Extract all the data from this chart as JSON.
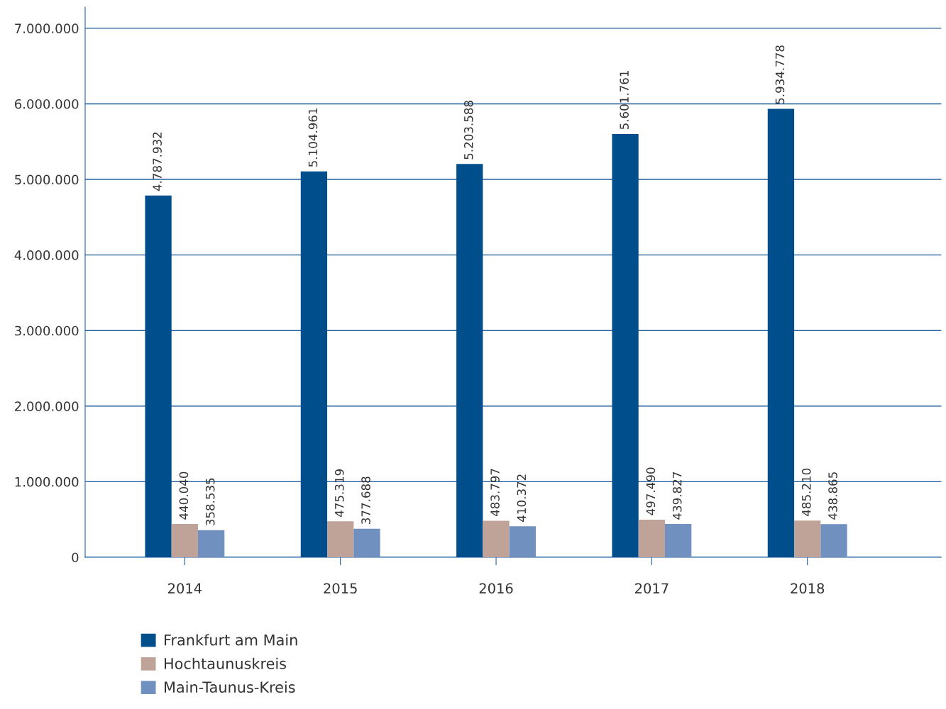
{
  "chart_data": {
    "type": "bar",
    "categories": [
      "2014",
      "2015",
      "2016",
      "2017",
      "2018"
    ],
    "series": [
      {
        "name": "Frankfurt am Main",
        "color": "#004f8c",
        "values": [
          4787932,
          5104961,
          5203588,
          5601761,
          5934778
        ],
        "value_labels": [
          "4.787.932",
          "5.104.961",
          "5.203.588",
          "5.601.761",
          "5.934.778"
        ]
      },
      {
        "name": "Hochtaunuskreis",
        "color": "#c0a398",
        "values": [
          440040,
          475319,
          483797,
          497490,
          485210
        ],
        "value_labels": [
          "440.040",
          "475.319",
          "483.797",
          "497.490",
          "485.210"
        ]
      },
      {
        "name": "Main-Taunus-Kreis",
        "color": "#7090c0",
        "values": [
          358535,
          377688,
          410372,
          439827,
          438865
        ],
        "value_labels": [
          "358.535",
          "377.688",
          "410.372",
          "439.827",
          "438.865"
        ]
      }
    ],
    "ylim": [
      0,
      7280000
    ],
    "yticks": [
      0,
      {
        "value": 1000000,
        "label": "1.000.000"
      },
      {
        "value": 2000000,
        "label": "2.000.000"
      },
      {
        "value": 3000000,
        "label": "3.000.000"
      },
      {
        "value": 4000000,
        "label": "4.000.000"
      },
      {
        "value": 5000000,
        "label": "5.000.000"
      },
      {
        "value": 6000000,
        "label": "6.000.000"
      },
      {
        "value": 7000000,
        "label": "7.000.000"
      }
    ],
    "grid": "y",
    "legend": "bottom left"
  }
}
